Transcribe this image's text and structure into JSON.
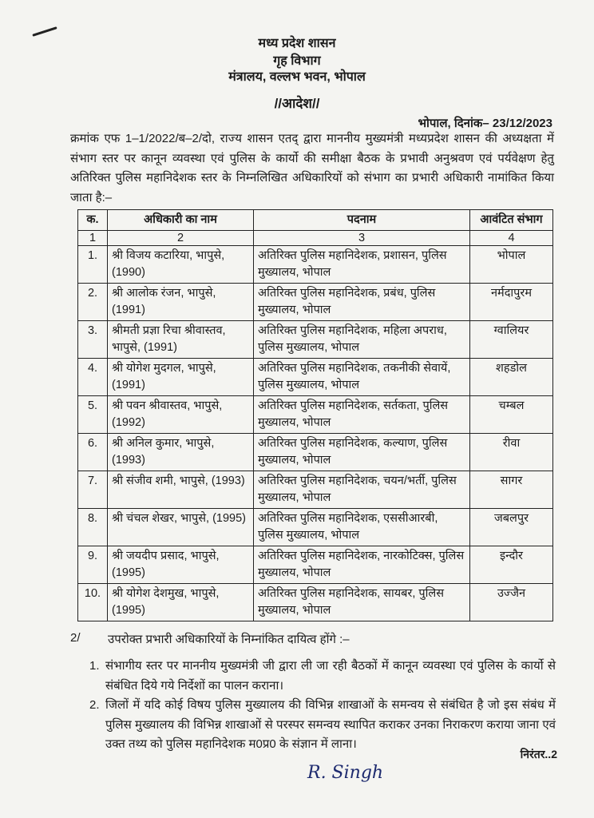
{
  "header": {
    "line1": "मध्य प्रदेश शासन",
    "line2": "गृह विभाग",
    "line3": "मंत्रालय, वल्लभ भवन, भोपाल",
    "order_title": "//आदेश//"
  },
  "date_line": "भोपाल, दिनांक– 23/12/2023",
  "intro": "क्रमांक एफ 1–1/2022/ब–2/दो, राज्य शासन एतद् द्वारा माननीय मुख्यमंत्री मध्यप्रदेश शासन की अध्यक्षता में संभाग स्तर पर कानून व्यवस्था एवं पुलिस के कार्यो की समीक्षा बैठक के प्रभावी अनुश्रवण एवं पर्यवेक्षण हेतु अतिरिक्त पुलिस महानिदेशक स्तर के निम्नलिखित अधिकारियों को संभाग का प्रभारी अधिकारी नामांकित किया जाता है:–",
  "table": {
    "headers": [
      "क.",
      "अधिकारी का नाम",
      "पदनाम",
      "आवंटित संभाग"
    ],
    "column_numbers": [
      "1",
      "2",
      "3",
      "4"
    ],
    "rows": [
      {
        "sn": "1.",
        "name": "श्री विजय कटारिया, भापुसे, (1990)",
        "designation": "अतिरिक्त पुलिस महानिदेशक, प्रशासन, पुलिस मुख्यालय, भोपाल",
        "division": "भोपाल"
      },
      {
        "sn": "2.",
        "name": "श्री आलोक रंजन, भापुसे, (1991)",
        "designation": "अतिरिक्त पुलिस महानिदेशक, प्रबंध, पुलिस मुख्यालय, भोपाल",
        "division": "नर्मदापुरम"
      },
      {
        "sn": "3.",
        "name": "श्रीमती प्रज्ञा रिचा श्रीवास्तव, भापुसे, (1991)",
        "designation": "अतिरिक्त पुलिस महानिदेशक, महिला अपराध, पुलिस मुख्यालय, भोपाल",
        "division": "ग्वालियर"
      },
      {
        "sn": "4.",
        "name": "श्री योगेश मुदगल, भापुसे, (1991)",
        "designation": "अतिरिक्त पुलिस महानिदेशक, तकनीकी सेवायें, पुलिस मुख्यालय, भोपाल",
        "division": "शहडोल"
      },
      {
        "sn": "5.",
        "name": "श्री पवन श्रीवास्तव, भापुसे, (1992)",
        "designation": "अतिरिक्त पुलिस महानिदेशक, सर्तकता, पुलिस मुख्यालय, भोपाल",
        "division": "चम्बल"
      },
      {
        "sn": "6.",
        "name": "श्री अनिल कुमार, भापुसे, (1993)",
        "designation": "अतिरिक्त पुलिस महानिदेशक, कल्याण, पुलिस मुख्यालय, भोपाल",
        "division": "रीवा"
      },
      {
        "sn": "7.",
        "name": "श्री संजीव शमी, भापुसे, (1993)",
        "designation": "अतिरिक्त पुलिस महानिदेशक, चयन/भर्ती, पुलिस मुख्यालय, भोपाल",
        "division": "सागर"
      },
      {
        "sn": "8.",
        "name": "श्री चंचल शेखर, भापुसे, (1995)",
        "designation": "अतिरिक्त पुलिस महानिदेशक, एससीआरबी, पुलिस मुख्यालय, भोपाल",
        "division": "जबलपुर"
      },
      {
        "sn": "9.",
        "name": "श्री जयदीप प्रसाद, भापुसे, (1995)",
        "designation": "अतिरिक्त पुलिस महानिदेशक, नारकोटिक्स, पुलिस मुख्यालय, भोपाल",
        "division": "इन्दौर"
      },
      {
        "sn": "10.",
        "name": "श्री योगेश देशमुख, भापुसे, (1995)",
        "designation": "अतिरिक्त पुलिस महानिदेशक, सायबर, पुलिस मुख्यालय, भोपाल",
        "division": "उज्जैन"
      }
    ]
  },
  "section2": {
    "number": "2/",
    "heading": "उपरोक्त प्रभारी अधिकारियों के निम्नांकित दायित्व होंगे :–",
    "items": [
      {
        "n": "1.",
        "text": "संभागीय स्तर पर माननीय मुख्यमंत्री जी द्वारा ली जा रही बैठकों में कानून व्यवस्था एवं पुलिस के कार्यो से संबंधित दिये गये निर्देशों का पालन कराना।"
      },
      {
        "n": "2.",
        "text": "जिलों में यदि कोई विषय पुलिस मुख्यालय की विभिन्न शाखाओं के समन्वय से संबंधित है जो इस संबंध में पुलिस मुख्यालय की विभिन्न शाखाओं से परस्पर समन्वय स्थापित कराकर उनका निराकरण कराया जाना एवं उक्त तथ्य को पुलिस महानिदेशक म0प्र0 के संज्ञान में लाना।"
      }
    ]
  },
  "continued": "निरंतर..2",
  "signature": "R. Singh"
}
